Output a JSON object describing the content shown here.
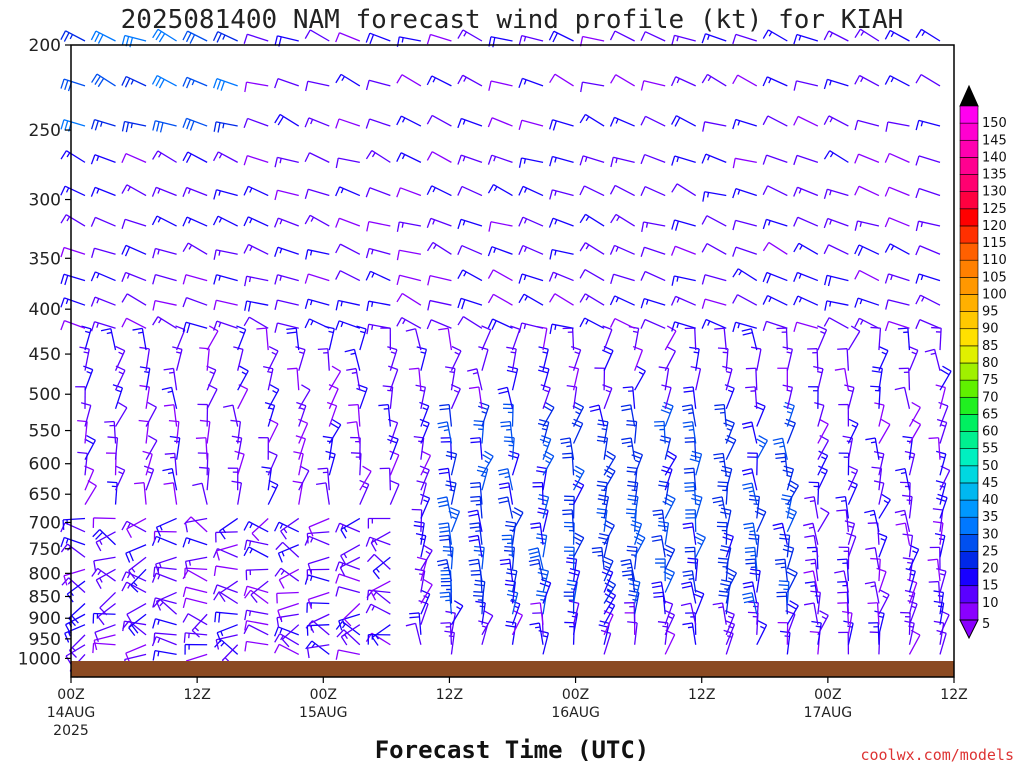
{
  "chart_data": {
    "type": "wind-barb",
    "title": "2025081400 NAM forecast wind profile (kt) for KIAH",
    "xlabel": "Forecast Time (UTC)",
    "credit": "coolwx.com/models",
    "y_axis": {
      "label": "",
      "ticks": [
        "200",
        "250",
        "300",
        "350",
        "400",
        "450",
        "500",
        "550",
        "600",
        "650",
        "700",
        "750",
        "800",
        "850",
        "900",
        "950",
        "1000"
      ]
    },
    "x_axis": {
      "ticks": [
        {
          "hour": "00Z",
          "date": "14AUG",
          "year": "2025"
        },
        {
          "hour": "12Z",
          "date": "",
          "year": ""
        },
        {
          "hour": "00Z",
          "date": "15AUG",
          "year": ""
        },
        {
          "hour": "12Z",
          "date": "",
          "year": ""
        },
        {
          "hour": "00Z",
          "date": "16AUG",
          "year": ""
        },
        {
          "hour": "12Z",
          "date": "",
          "year": ""
        },
        {
          "hour": "00Z",
          "date": "17AUG",
          "year": ""
        },
        {
          "hour": "12Z",
          "date": "",
          "year": ""
        }
      ]
    },
    "colorbar": {
      "units": "kt",
      "ticks": [
        "5",
        "10",
        "15",
        "20",
        "25",
        "30",
        "35",
        "40",
        "45",
        "50",
        "55",
        "60",
        "65",
        "70",
        "75",
        "80",
        "85",
        "90",
        "95",
        "100",
        "105",
        "110",
        "115",
        "120",
        "125",
        "130",
        "135",
        "140",
        "145",
        "150"
      ],
      "colors": [
        "#8a00ff",
        "#5a00ff",
        "#1800ff",
        "#0028e8",
        "#0050f0",
        "#0078ff",
        "#0098ff",
        "#00b8f0",
        "#00d8e0",
        "#00f0c0",
        "#00f090",
        "#00f060",
        "#20f020",
        "#60f000",
        "#a0f000",
        "#e0f000",
        "#ffe000",
        "#ffc800",
        "#ffb000",
        "#ff9800",
        "#ff8000",
        "#ff6000",
        "#ff3000",
        "#ff0000",
        "#ff0040",
        "#ff0070",
        "#ff0090",
        "#ff00b0",
        "#ff00d0",
        "#ff00f0"
      ],
      "under_color": "#8a00ff",
      "over_color": "#000000"
    },
    "surface_color": "#8b4a22",
    "pressure_levels": [
      1000,
      975,
      950,
      925,
      900,
      875,
      850,
      825,
      800,
      775,
      750,
      725,
      700,
      675,
      650,
      625,
      600,
      575,
      550,
      525,
      500,
      475,
      450,
      425,
      400,
      375,
      350,
      325,
      300,
      275,
      250,
      225,
      200
    ],
    "wind_barbs_note": "Wind barbs every 3 forecast hours, 00Z 14AUG to 12Z 17AUG 2025; speeds mostly 5-30 kt"
  }
}
